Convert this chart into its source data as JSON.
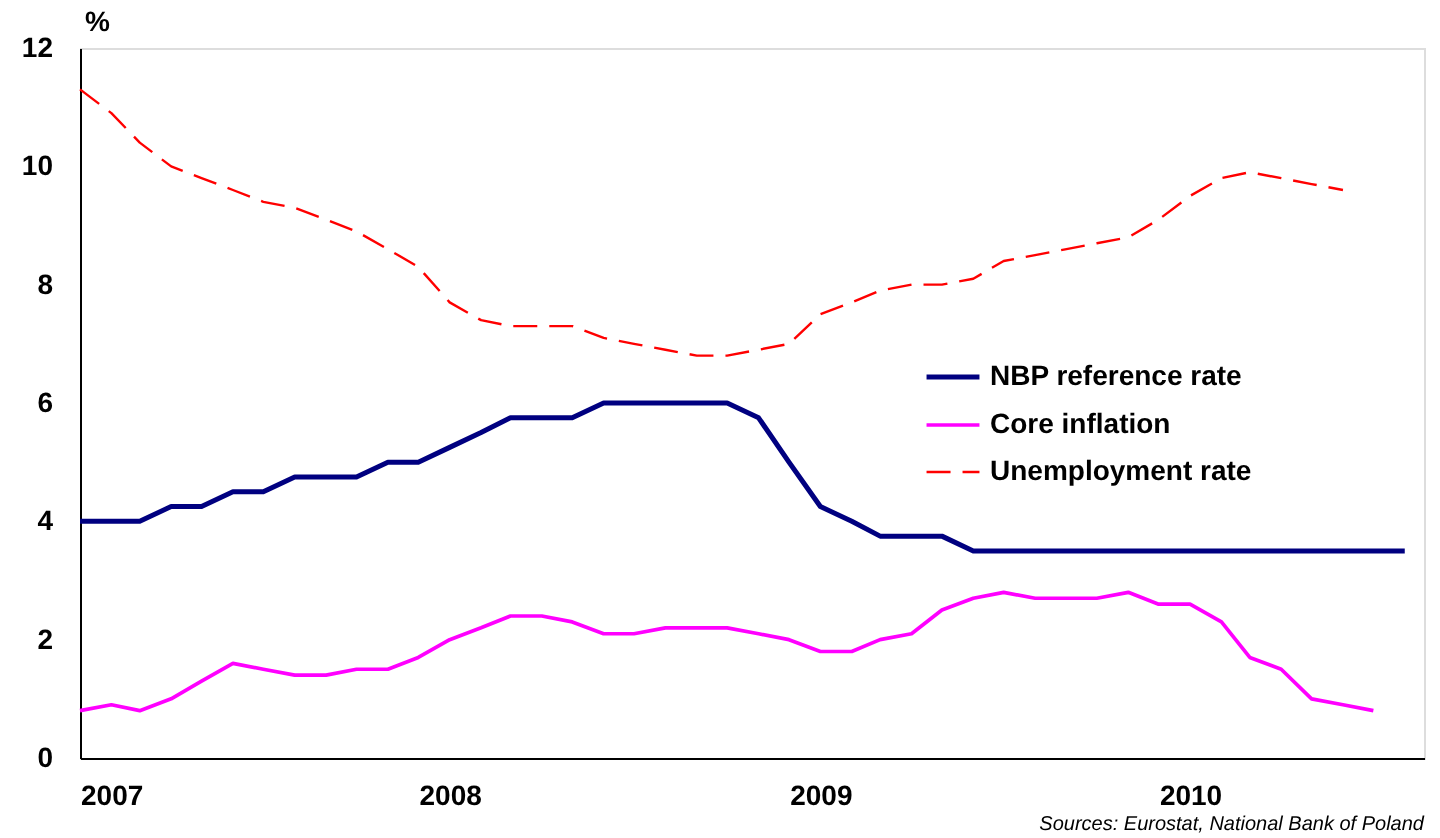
{
  "chart_data": {
    "type": "line",
    "ylabel": "%",
    "x": [
      "2007-01",
      "2007-02",
      "2007-03",
      "2007-04",
      "2007-05",
      "2007-06",
      "2007-07",
      "2007-08",
      "2007-09",
      "2007-10",
      "2007-11",
      "2007-12",
      "2008-01",
      "2008-02",
      "2008-03",
      "2008-04",
      "2008-05",
      "2008-06",
      "2008-07",
      "2008-08",
      "2008-09",
      "2008-10",
      "2008-11",
      "2008-12",
      "2009-01",
      "2009-02",
      "2009-03",
      "2009-04",
      "2009-05",
      "2009-06",
      "2009-07",
      "2009-08",
      "2009-09",
      "2009-10",
      "2009-11",
      "2009-12",
      "2010-01",
      "2010-02",
      "2010-03",
      "2010-04",
      "2010-05",
      "2010-06",
      "2010-07",
      "2010-08"
    ],
    "series": [
      {
        "name": "NBP reference rate",
        "color": "#000080",
        "line_style": "solid",
        "values": [
          4,
          4,
          4,
          4.25,
          4.25,
          4.5,
          4.5,
          4.75,
          4.75,
          4.75,
          5,
          5,
          5.25,
          5.5,
          5.75,
          5.75,
          5.75,
          6,
          6,
          6,
          6,
          6,
          5.75,
          5,
          4.25,
          4,
          3.75,
          3.75,
          3.75,
          3.5,
          3.5,
          3.5,
          3.5,
          3.5,
          3.5,
          3.5,
          3.5,
          3.5,
          3.5,
          3.5,
          3.5,
          3.5,
          3.5,
          3.5
        ]
      },
      {
        "name": "Core inflation",
        "color": "#ff00ff",
        "line_style": "solid",
        "values": [
          0.8,
          0.9,
          0.8,
          1.0,
          1.3,
          1.6,
          1.5,
          1.4,
          1.4,
          1.5,
          1.5,
          1.7,
          2.0,
          2.2,
          2.4,
          2.4,
          2.3,
          2.1,
          2.1,
          2.2,
          2.2,
          2.2,
          2.1,
          2.0,
          1.8,
          1.8,
          2.0,
          2.1,
          2.5,
          2.7,
          2.8,
          2.7,
          2.7,
          2.7,
          2.8,
          2.6,
          2.6,
          2.3,
          1.7,
          1.5,
          1.0,
          0.9,
          0.8,
          null
        ]
      },
      {
        "name": "Unemployment rate",
        "color": "#ff0000",
        "line_style": "dashed",
        "values": [
          11.3,
          10.9,
          10.4,
          10.0,
          9.8,
          9.6,
          9.4,
          9.3,
          9.1,
          8.9,
          8.6,
          8.3,
          7.7,
          7.4,
          7.3,
          7.3,
          7.3,
          7.1,
          7.0,
          6.9,
          6.8,
          6.8,
          6.9,
          7.0,
          7.5,
          7.7,
          7.9,
          8.0,
          8.0,
          8.1,
          8.4,
          8.5,
          8.6,
          8.7,
          8.8,
          9.1,
          9.5,
          9.8,
          9.9,
          9.8,
          9.7,
          9.6,
          null,
          null
        ]
      }
    ],
    "xlim": [
      "2007-01",
      "2010-08-20"
    ],
    "xticks": [
      "2007",
      "2008",
      "2009",
      "2010"
    ],
    "ylim": [
      0,
      12
    ],
    "yticks": [
      0,
      2,
      4,
      6,
      8,
      10,
      12
    ],
    "grid": false,
    "legend": "right",
    "marker": "none",
    "annotations": [
      "Sources: Eurostat, National Bank of Poland"
    ]
  }
}
